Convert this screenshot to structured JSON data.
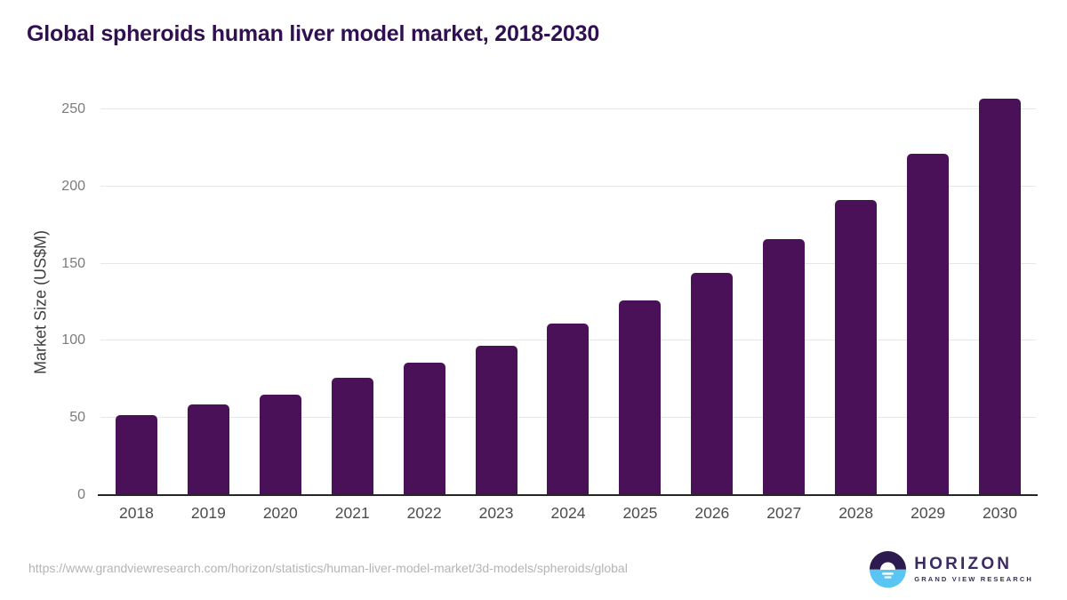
{
  "title": "Global spheroids human liver model market, 2018-2030",
  "source_url": "https://www.grandviewresearch.com/horizon/statistics/human-liver-model-market/3d-models/spheroids/global",
  "logo": {
    "name": "HORIZON",
    "subtitle": "GRAND VIEW RESEARCH",
    "icon": "horizon-sun-over-water",
    "icon_colors": {
      "top": "#2d1a4e",
      "bottom": "#58c5f2",
      "sun": "#ffffff"
    }
  },
  "colors": {
    "bar": "#4a1158",
    "title": "#301050",
    "gridline": "#e7e7e7",
    "axis_line": "#262626",
    "y_tick_label": "#7b7b7b",
    "x_tick_label": "#4c4c4c",
    "source_text": "#b4b4b4"
  },
  "chart_data": {
    "type": "bar",
    "title": "Global spheroids human liver model market, 2018-2030",
    "categories": [
      "2018",
      "2019",
      "2020",
      "2021",
      "2022",
      "2023",
      "2024",
      "2025",
      "2026",
      "2027",
      "2028",
      "2029",
      "2030"
    ],
    "values": [
      52,
      59,
      65,
      76,
      86,
      97,
      111,
      126,
      144,
      166,
      191,
      221,
      257
    ],
    "xlabel": "",
    "ylabel": "Market Size (US$M)",
    "ylim": [
      0,
      265
    ],
    "yticks": [
      0,
      50,
      100,
      150,
      200,
      250
    ],
    "grid": "horizontal",
    "legend": false,
    "bar_color": "#4a1158"
  }
}
